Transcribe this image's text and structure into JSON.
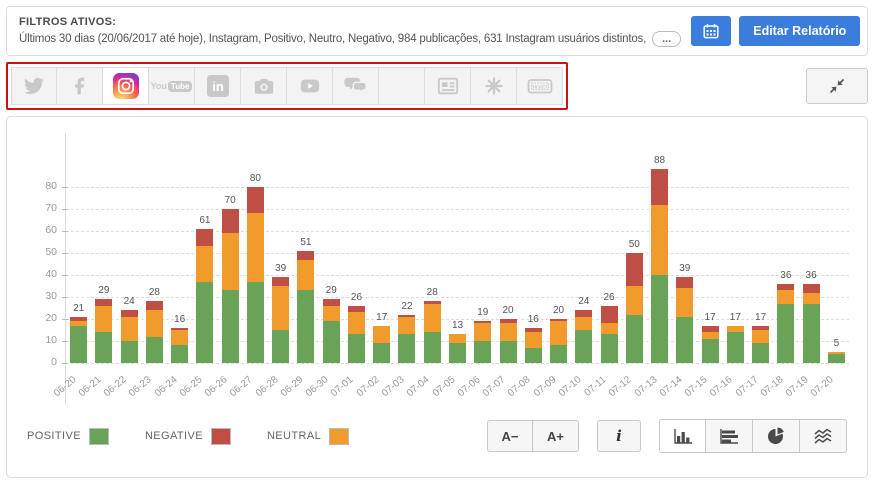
{
  "filter_bar": {
    "title": "FILTROS ATIVOS:",
    "description": "Últimos 30 dias (20/06/2017 até hoje), Instagram, Positivo, Neutro, Negativo, 984 publicações, 631 Instagram usuários distintos,",
    "more_label": "...",
    "edit_report_label": "Editar Relatório",
    "accent_color": "#3b7ddd"
  },
  "sources": {
    "highlight_border_color": "#cc1111",
    "items": [
      {
        "id": "twitter",
        "icon": "twitter-icon",
        "active": false
      },
      {
        "id": "facebook",
        "icon": "facebook-icon",
        "active": false
      },
      {
        "id": "instagram",
        "icon": "instagram-icon",
        "active": true
      },
      {
        "id": "youtube",
        "icon": "youtube-icon",
        "active": false
      },
      {
        "id": "linkedin",
        "icon": "linkedin-icon",
        "active": false
      },
      {
        "id": "photos",
        "icon": "camera-icon",
        "active": false
      },
      {
        "id": "videos",
        "icon": "video-icon",
        "active": false
      },
      {
        "id": "comments",
        "icon": "chat-icon",
        "active": false
      },
      {
        "id": "quotes",
        "icon": "quote-icon",
        "active": false
      },
      {
        "id": "news",
        "icon": "news-icon",
        "active": false
      },
      {
        "id": "mentions",
        "icon": "burst-icon",
        "active": false
      },
      {
        "id": "tickets",
        "icon": "ticket-icon",
        "active": false
      }
    ]
  },
  "chart_data": {
    "type": "bar",
    "stacked": true,
    "title": "",
    "xlabel": "",
    "ylabel": "",
    "ylim": [
      0,
      90
    ],
    "yticks": [
      0,
      10,
      20,
      30,
      40,
      50,
      60,
      70,
      80
    ],
    "grid": "horizontal-dashed",
    "bar_total_labels": true,
    "legend_position": "bottom-left",
    "categories": [
      "06-20",
      "06-21",
      "06-22",
      "06-23",
      "06-24",
      "06-25",
      "06-26",
      "06-27",
      "06-28",
      "06-29",
      "06-30",
      "07-01",
      "07-02",
      "07-03",
      "07-04",
      "07-05",
      "07-06",
      "07-07",
      "07-08",
      "07-09",
      "07-10",
      "07-11",
      "07-12",
      "07-13",
      "07-14",
      "07-15",
      "07-16",
      "07-17",
      "07-18",
      "07-19",
      "07-20"
    ],
    "totals": [
      21,
      29,
      24,
      28,
      16,
      61,
      70,
      80,
      39,
      51,
      29,
      26,
      17,
      22,
      28,
      13,
      19,
      20,
      16,
      20,
      24,
      26,
      50,
      88,
      39,
      17,
      17,
      17,
      36,
      36,
      5
    ],
    "series": [
      {
        "name": "POSITIVE",
        "color": "#68a357",
        "values": [
          17,
          14,
          10,
          12,
          8,
          37,
          33,
          37,
          15,
          33,
          19,
          13,
          9,
          13,
          14,
          9,
          10,
          10,
          7,
          8,
          15,
          13,
          22,
          40,
          21,
          11,
          14,
          9,
          27,
          27,
          4
        ]
      },
      {
        "name": "NEUTRAL",
        "color": "#f19b2c",
        "values": [
          2,
          12,
          11,
          12,
          7,
          16,
          26,
          31,
          20,
          14,
          7,
          10,
          8,
          8,
          13,
          4,
          8,
          8,
          7,
          11,
          6,
          5,
          13,
          32,
          13,
          3,
          3,
          6,
          6,
          5,
          1
        ]
      },
      {
        "name": "NEGATIVE",
        "color": "#bf4f44",
        "values": [
          2,
          3,
          3,
          4,
          1,
          8,
          11,
          12,
          4,
          4,
          3,
          3,
          0,
          1,
          1,
          0,
          1,
          2,
          2,
          1,
          3,
          8,
          15,
          16,
          5,
          3,
          0,
          2,
          3,
          4,
          0
        ]
      }
    ]
  },
  "legend": [
    {
      "label": "POSITIVE",
      "color": "#68a357"
    },
    {
      "label": "NEGATIVE",
      "color": "#bf4f44"
    },
    {
      "label": "NEUTRAL",
      "color": "#f19b2c"
    }
  ],
  "controls": {
    "font_decrease_label": "A−",
    "font_increase_label": "A+",
    "info_label": "i",
    "chart_types": [
      {
        "id": "column-chart",
        "active": true
      },
      {
        "id": "bar-chart",
        "active": false
      },
      {
        "id": "pie-chart",
        "active": false
      },
      {
        "id": "line-chart",
        "active": false
      }
    ]
  }
}
